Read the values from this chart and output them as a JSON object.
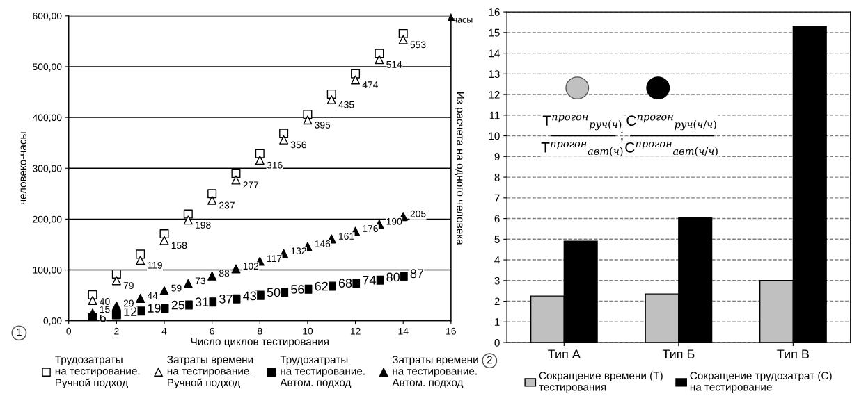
{
  "chart_data": [
    {
      "type": "scatter",
      "xlabel": "Число циклов тестирования",
      "ylabel": "человеко-часы",
      "y2label": "Из расчета на одного человека",
      "x": [
        1,
        2,
        3,
        4,
        5,
        6,
        7,
        8,
        9,
        10,
        11,
        12,
        13,
        14
      ],
      "series": [
        {
          "name": "Трудозатраты\nна тестирование.\nРучной подход",
          "color": "#ffffff",
          "marker": "square",
          "values": [
            51,
            92,
            131,
            171,
            210,
            250,
            290,
            329,
            369,
            406,
            446,
            486,
            526,
            565
          ]
        },
        {
          "name": "Затраты времени\nна тестирование.\nРучной подход",
          "color": "#ffffff",
          "marker": "triangle",
          "values": [
            40,
            79,
            119,
            158,
            198,
            237,
            277,
            316,
            356,
            395,
            435,
            474,
            514,
            553
          ],
          "value_labels": [
            "40",
            "79",
            "119",
            "158",
            "198",
            "237",
            "277",
            "316",
            "356",
            "395",
            "435",
            "474",
            "514",
            "553"
          ]
        },
        {
          "name": "Трудозатраты\nна тестирование.\nАвтом. подход",
          "color": "#000000",
          "marker": "square",
          "values": [
            6,
            12,
            19,
            25,
            31,
            37,
            43,
            50,
            56,
            62,
            68,
            74,
            80,
            87
          ],
          "value_labels": [
            "6",
            "12",
            "19",
            "25",
            "31",
            "37",
            "43",
            "50",
            "56",
            "62",
            "68",
            "74",
            "80",
            "87"
          ]
        },
        {
          "name": "Затраты времени\nна тестирование.\nАвтом. подход",
          "color": "#000000",
          "marker": "triangle",
          "values": [
            15,
            29,
            44,
            59,
            73,
            88,
            102,
            117,
            132,
            146,
            161,
            176,
            190,
            205
          ],
          "value_labels": [
            "15",
            "29",
            "44",
            "59",
            "73",
            "88",
            "102",
            "117",
            "132",
            "146",
            "161",
            "176",
            "190",
            "205"
          ]
        }
      ],
      "xlim": [
        0,
        16
      ],
      "xticks": [
        0,
        2,
        4,
        6,
        8,
        10,
        12,
        14,
        16
      ],
      "ylim": [
        0,
        600
      ],
      "yticks": [
        {
          "value": 0,
          "label": "0,00"
        },
        {
          "value": 100,
          "label": "100,00"
        },
        {
          "value": 200,
          "label": "200,00"
        },
        {
          "value": 300,
          "label": "300,00"
        },
        {
          "value": 400,
          "label": "400,00"
        },
        {
          "value": 500,
          "label": "500,00"
        },
        {
          "value": 600,
          "label": "600,00"
        }
      ],
      "grid": "y",
      "legend": "bottom",
      "annotations": [
        "1",
        "часы"
      ]
    },
    {
      "type": "bar",
      "categories": [
        "Тип А",
        "Тип Б",
        "Тип В"
      ],
      "series": [
        {
          "name": "Сокращение времени (Т)\nтестирования",
          "color": "#c0c0c0",
          "values": [
            2.25,
            2.35,
            3.0
          ]
        },
        {
          "name": "Сокращение трудозатрат (С)\nна тестирование",
          "color": "#000000",
          "values": [
            4.9,
            6.05,
            15.3
          ]
        }
      ],
      "ylim": [
        0,
        16
      ],
      "yticks": [
        0,
        1,
        2,
        3,
        4,
        5,
        6,
        7,
        8,
        9,
        10,
        11,
        12,
        13,
        14,
        15,
        16
      ],
      "grid": "y",
      "legend": "bottom",
      "annotations": [
        "2",
        "T$^{прогон}$$_{руч(ч)}$",
        "T$^{прогон}$$_{авт(ч)}$",
        ";",
        "C$^{прогон}$$_{руч(ч/ч)}$",
        "C$^{прогон}$$_{авт(ч/ч)}$"
      ]
    }
  ]
}
